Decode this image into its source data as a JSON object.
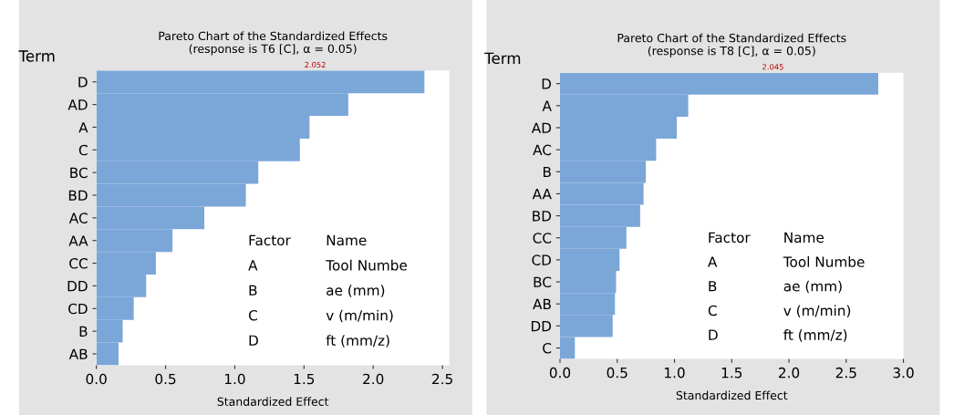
{
  "chart_data": [
    {
      "type": "bar",
      "orientation": "horizontal",
      "title": "Pareto Chart of the Standardized Effects",
      "subtitle": "(response is T6 [C], α = 0.05)",
      "ylabel": "Term",
      "xlabel": "Standardized Effect",
      "categories": [
        "D",
        "AD",
        "A",
        "C",
        "BC",
        "BD",
        "AC",
        "AA",
        "CC",
        "DD",
        "CD",
        "B",
        "AB"
      ],
      "values": [
        2.37,
        1.82,
        1.54,
        1.47,
        1.17,
        1.08,
        0.78,
        0.55,
        0.43,
        0.36,
        0.27,
        0.19,
        0.16
      ],
      "color": "#7ba6d8",
      "xlim": [
        0,
        2.55
      ],
      "xticks": [
        {
          "value": 0,
          "label": "0.0"
        },
        {
          "value": 0.5,
          "label": "0.5"
        },
        {
          "value": 1,
          "label": "1.0"
        },
        {
          "value": 1.5,
          "label": "1.5"
        },
        {
          "value": 2,
          "label": "2.0"
        },
        {
          "value": 2.5,
          "label": "2.5"
        }
      ],
      "annotations": [
        "2.052",
        "Factor",
        "Name",
        "A",
        "Tool Numbe",
        "B",
        "ae (mm)",
        "C",
        "v (m/min)",
        "D",
        "ft (mm/z)"
      ]
    },
    {
      "type": "bar",
      "orientation": "horizontal",
      "title": "Pareto Chart of the Standardized Effects",
      "subtitle": "(response is T8 [C], α = 0.05)",
      "ylabel": "Term",
      "xlabel": "Standardized Effect",
      "categories": [
        "D",
        "A",
        "AD",
        "AC",
        "B",
        "AA",
        "BD",
        "CC",
        "CD",
        "BC",
        "AB",
        "DD",
        "C"
      ],
      "values": [
        2.78,
        1.12,
        1.02,
        0.84,
        0.75,
        0.73,
        0.7,
        0.58,
        0.52,
        0.49,
        0.48,
        0.46,
        0.13
      ],
      "color": "#7ba6d8",
      "xlim": [
        0,
        3.0
      ],
      "xticks": [
        {
          "value": 0,
          "label": "0.0"
        },
        {
          "value": 0.5,
          "label": "0.5"
        },
        {
          "value": 1,
          "label": "1.0"
        },
        {
          "value": 1.5,
          "label": "1.5"
        },
        {
          "value": 2,
          "label": "2.0"
        },
        {
          "value": 2.5,
          "label": "2.5"
        },
        {
          "value": 3,
          "label": "3.0"
        }
      ],
      "annotations": [
        "2.045",
        "Factor",
        "Name",
        "A",
        "Tool Numbe",
        "B",
        "ae (mm)",
        "C",
        "v (m/min)",
        "D",
        "ft (mm/z)"
      ]
    }
  ]
}
